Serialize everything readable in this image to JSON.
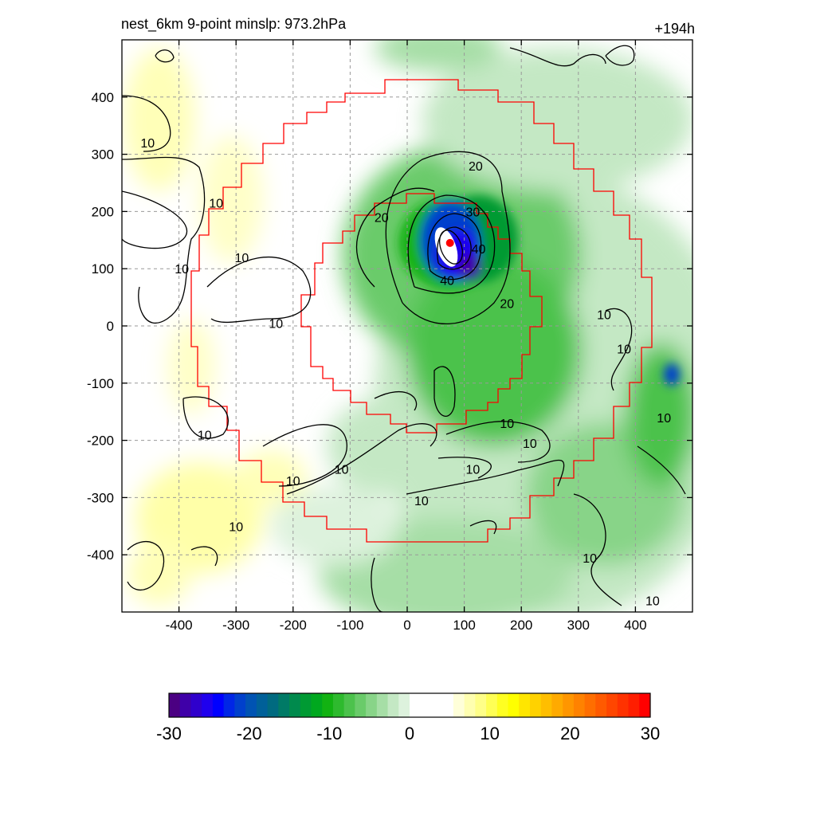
{
  "header": {
    "left": "nest_6km  9-point minslp: 973.2hPa",
    "right": "+194h"
  },
  "chart_data": {
    "type": "heatmap",
    "title": "nest_6km  9-point minslp: 973.2hPa",
    "time_label": "+194h",
    "xlim": [
      -500,
      500
    ],
    "ylim": [
      -500,
      500
    ],
    "x_ticks": [
      -400,
      -300,
      -200,
      -100,
      0,
      100,
      200,
      300,
      400
    ],
    "y_ticks": [
      400,
      300,
      200,
      100,
      0,
      -100,
      -200,
      -300,
      -400
    ],
    "grid": true,
    "grid_style": "dashed",
    "storm_center": {
      "x": 75,
      "y": 145,
      "color": "#ff0000"
    },
    "contour_labels": [
      {
        "text": "20",
        "x": 120,
        "y": 280
      },
      {
        "text": "20",
        "x": -45,
        "y": 190
      },
      {
        "text": "20",
        "x": 175,
        "y": 40
      },
      {
        "text": "30",
        "x": 115,
        "y": 200
      },
      {
        "text": "40",
        "x": 125,
        "y": 135
      },
      {
        "text": "40",
        "x": 70,
        "y": 80
      },
      {
        "text": "10",
        "x": -335,
        "y": 215
      },
      {
        "text": "10",
        "x": -395,
        "y": 100
      },
      {
        "text": "10",
        "x": -290,
        "y": 120
      },
      {
        "text": "10",
        "x": -230,
        "y": 5
      },
      {
        "text": "10",
        "x": -455,
        "y": 320
      },
      {
        "text": "10",
        "x": -355,
        "y": -190
      },
      {
        "text": "10",
        "x": -200,
        "y": -270
      },
      {
        "text": "10",
        "x": -300,
        "y": -350
      },
      {
        "text": "10",
        "x": -115,
        "y": -250
      },
      {
        "text": "10",
        "x": 25,
        "y": -305
      },
      {
        "text": "10",
        "x": 115,
        "y": -250
      },
      {
        "text": "10",
        "x": 175,
        "y": -170
      },
      {
        "text": "10",
        "x": 215,
        "y": -205
      },
      {
        "text": "10",
        "x": 345,
        "y": 20
      },
      {
        "text": "10",
        "x": 380,
        "y": -40
      },
      {
        "text": "10",
        "x": 450,
        "y": -160
      },
      {
        "text": "10",
        "x": 320,
        "y": -405
      },
      {
        "text": "10",
        "x": 430,
        "y": -480
      }
    ],
    "colorbar": {
      "min": -30,
      "max": 30,
      "tick_labels": [
        "-30",
        "-20",
        "-10",
        "0",
        "10",
        "20",
        "30"
      ],
      "colors": [
        "#4b0082",
        "#3f00a8",
        "#2f00cc",
        "#1f00ee",
        "#0000ff",
        "#0026e6",
        "#0040cc",
        "#0053b3",
        "#006099",
        "#006a80",
        "#007a66",
        "#008a4d",
        "#009a33",
        "#00a81f",
        "#12b212",
        "#2eba2e",
        "#4cc24c",
        "#6acb6a",
        "#88d488",
        "#a6dea6",
        "#c4e8c4",
        "#ddf2dd",
        "#ffffff",
        "#ffffff",
        "#ffffff",
        "#ffffff",
        "#ffffd9",
        "#ffffb0",
        "#ffff88",
        "#ffff55",
        "#ffff22",
        "#ffff00",
        "#ffe600",
        "#ffd200",
        "#ffbe00",
        "#ffaa00",
        "#ff9600",
        "#ff8200",
        "#ff6e00",
        "#ff5a00",
        "#ff4600",
        "#ff3200",
        "#ff1e00",
        "#ff0000"
      ]
    }
  }
}
